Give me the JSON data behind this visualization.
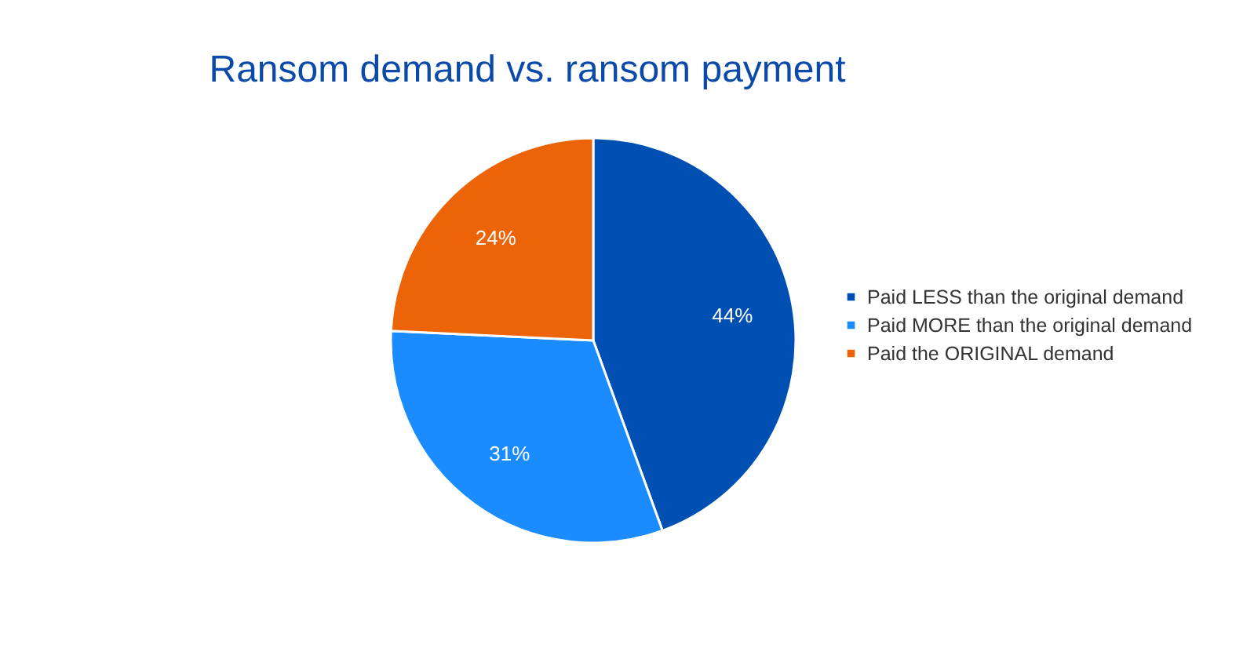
{
  "chart_data": {
    "type": "pie",
    "title": "Ransom demand vs. ransom payment",
    "categories": [
      "Paid LESS than the original demand",
      "Paid MORE than the original demand",
      "Paid the ORIGINAL demand"
    ],
    "values": [
      44,
      31,
      24
    ],
    "colors": [
      "#0050b4",
      "#1a8cff",
      "#ec6407"
    ],
    "value_labels": [
      "44%",
      "31%",
      "24%"
    ],
    "legend": "right"
  }
}
